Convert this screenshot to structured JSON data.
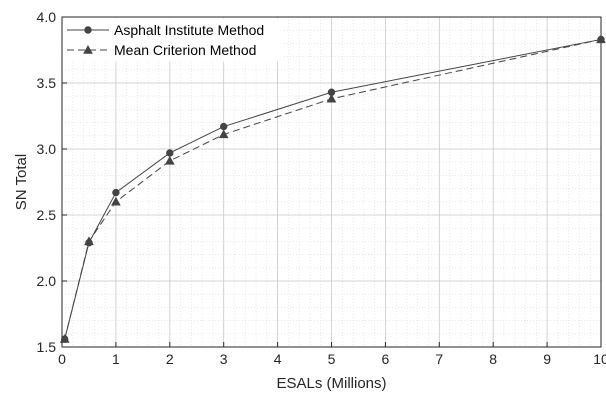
{
  "chart_data": {
    "type": "line",
    "xlabel": "ESALs (Millions)",
    "ylabel": "SN Total",
    "xlim": [
      0,
      10
    ],
    "ylim": [
      1.5,
      4.0
    ],
    "x_ticks": [
      "0",
      "1",
      "2",
      "3",
      "4",
      "5",
      "6",
      "7",
      "8",
      "9",
      "10"
    ],
    "y_ticks": [
      "1.5",
      "2.0",
      "2.5",
      "3.0",
      "3.5",
      "4.0"
    ],
    "grid": true,
    "minor_grid": true,
    "legend_position": "top-left",
    "series": [
      {
        "name": "Asphalt Institute Method",
        "marker": "circle",
        "line_style": "solid",
        "color": "#444444",
        "x": [
          0.05,
          0.5,
          1,
          2,
          3,
          5,
          10
        ],
        "y": [
          1.56,
          2.29,
          2.67,
          2.97,
          3.17,
          3.43,
          3.83
        ]
      },
      {
        "name": "Mean Criterion Method",
        "marker": "triangle",
        "line_style": "dashed",
        "color": "#444444",
        "x": [
          0.05,
          0.5,
          1,
          2,
          3,
          5,
          10
        ],
        "y": [
          1.56,
          2.3,
          2.6,
          2.91,
          3.11,
          3.38,
          3.83
        ]
      }
    ]
  }
}
